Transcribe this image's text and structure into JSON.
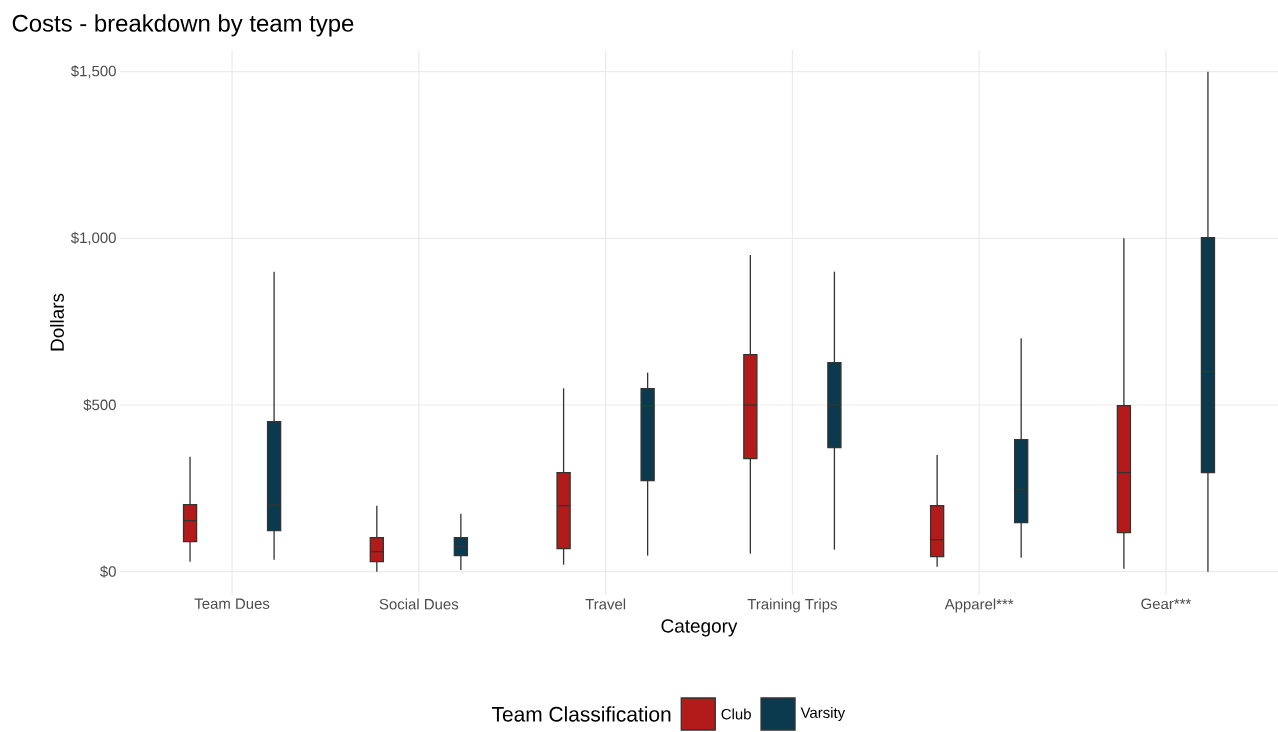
{
  "chart_data": {
    "type": "box",
    "title": "Costs - breakdown by team type",
    "xlabel": "Category",
    "ylabel": "Dollars",
    "legend_title": "Team Classification",
    "legend": "bottom",
    "grid": true,
    "categories": [
      "Team Dues",
      "Social Dues",
      "Travel",
      "Training Trips",
      "Apparel***",
      "Gear***"
    ],
    "ylim": [
      -70,
      1565
    ],
    "yticks": [
      {
        "value": 0,
        "label": "$0"
      },
      {
        "value": 500,
        "label": "$500"
      },
      {
        "value": 1000,
        "label": "$1,000"
      },
      {
        "value": 1500,
        "label": "$1,500"
      }
    ],
    "series": [
      {
        "name": "Club",
        "color": "#b31b1b",
        "boxes": [
          {
            "low": 30,
            "q1": 90,
            "median": 153,
            "q3": 201,
            "high": 345
          },
          {
            "low": 0,
            "q1": 30,
            "median": 60,
            "q3": 102,
            "high": 198
          },
          {
            "low": 21,
            "q1": 69,
            "median": 198,
            "q3": 297,
            "high": 550
          },
          {
            "low": 54,
            "q1": 339,
            "median": 500,
            "q3": 651,
            "high": 950
          },
          {
            "low": 15,
            "q1": 45,
            "median": 96,
            "q3": 198,
            "high": 350
          },
          {
            "low": 9,
            "q1": 117,
            "median": 297,
            "q3": 498,
            "high": 1000
          }
        ]
      },
      {
        "name": "Varsity",
        "color": "#0b3a4e",
        "boxes": [
          {
            "low": 36,
            "q1": 123,
            "median": 200,
            "q3": 450,
            "high": 900
          },
          {
            "low": 5,
            "q1": 48,
            "median": 75,
            "q3": 102,
            "high": 174
          },
          {
            "low": 48,
            "q1": 273,
            "median": 498,
            "q3": 549,
            "high": 597
          },
          {
            "low": 66,
            "q1": 372,
            "median": 500,
            "q3": 627,
            "high": 900
          },
          {
            "low": 42,
            "q1": 147,
            "median": 246,
            "q3": 396,
            "high": 700
          },
          {
            "low": 0,
            "q1": 297,
            "median": 600,
            "q3": 1002,
            "high": 1500
          }
        ]
      }
    ]
  }
}
